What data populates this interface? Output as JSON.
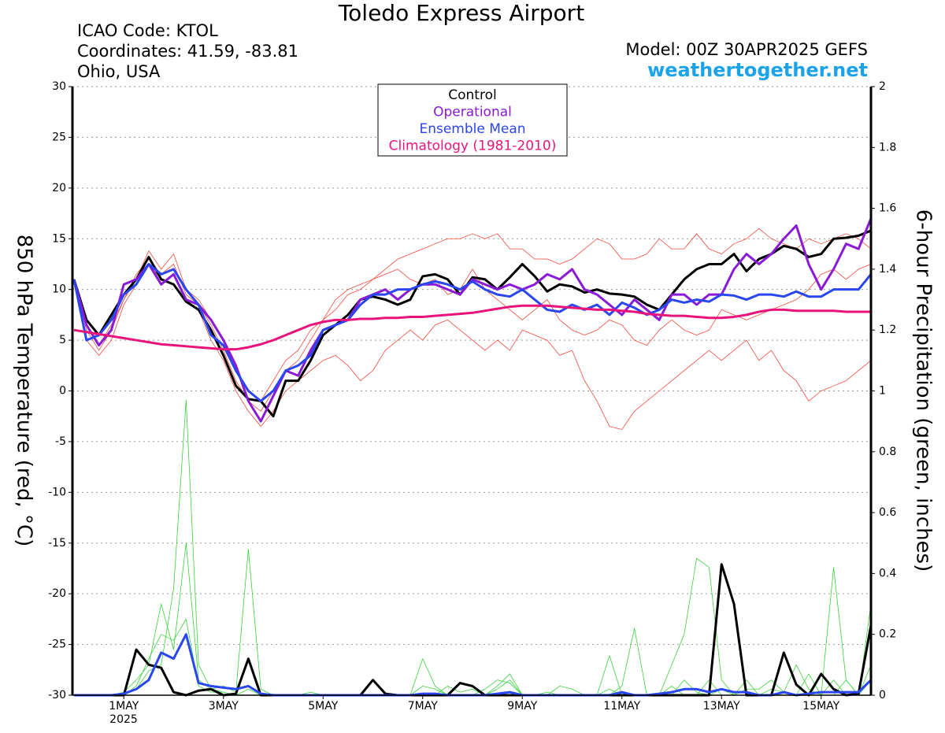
{
  "chart_data": {
    "type": "line",
    "title": "Toledo Express Airport",
    "info": [
      "ICAO Code: KTOL",
      "Coordinates: 41.59, -83.81",
      "Ohio, USA"
    ],
    "model": "Model: 00Z 30APR2025 GEFS",
    "source": "weathertogether.net",
    "ylabel": "850 hPa Temperature (red, °C)",
    "y2label": "6-hour Precipitation (green, inches)",
    "x_sublabel": "2025",
    "categories": [
      null,
      null,
      null,
      null,
      "1MAY",
      null,
      null,
      null,
      null,
      null,
      null,
      null,
      "3MAY",
      null,
      null,
      null,
      null,
      null,
      null,
      null,
      "5MAY",
      null,
      null,
      null,
      null,
      null,
      null,
      null,
      "7MAY",
      null,
      null,
      null,
      null,
      null,
      null,
      null,
      "9MAY",
      null,
      null,
      null,
      null,
      null,
      null,
      null,
      "11MAY",
      null,
      null,
      null,
      null,
      null,
      null,
      null,
      "13MAY",
      null,
      null,
      null,
      null,
      null,
      null,
      null,
      "15MAY",
      null,
      null,
      null,
      null
    ],
    "ylim": [
      -30,
      30
    ],
    "yticks": [
      -30,
      -25,
      -20,
      -15,
      -10,
      -5,
      0,
      5,
      10,
      15,
      20,
      25,
      30
    ],
    "y2lim": [
      0,
      2
    ],
    "y2ticks": [
      0,
      0.2,
      0.4,
      0.6,
      0.8,
      1,
      1.2,
      1.4,
      1.6,
      1.8,
      2
    ],
    "grid": true,
    "series": [
      {
        "color": "#f04a3a",
        "linewidth": 0.8,
        "values": [
          11,
          6,
          4,
          6,
          9,
          11,
          13.8,
          12,
          13.5,
          10,
          9,
          7,
          5,
          2,
          0,
          -1,
          1,
          3,
          4,
          6,
          7,
          8,
          9.5,
          10,
          11,
          12,
          13,
          13.5,
          14,
          14.5,
          15,
          15,
          15.5,
          15,
          15.5,
          14,
          14,
          13,
          13,
          12.5,
          13,
          14,
          15,
          14.5,
          13,
          13,
          13.5,
          15,
          14,
          14,
          15.5,
          14,
          13.5,
          14.5,
          15,
          16,
          15,
          14.5,
          14,
          15,
          14.5,
          15,
          15.5,
          15,
          14
        ]
      },
      {
        "color": "#f04a3a",
        "linewidth": 0.8,
        "values": [
          11,
          5,
          3.5,
          5,
          8.5,
          10.5,
          12.5,
          11,
          10.5,
          9,
          8,
          5,
          3,
          0,
          -2,
          -3.5,
          -2,
          0,
          1,
          2,
          3,
          3.5,
          2.5,
          1,
          2,
          4,
          5,
          6,
          5,
          6.5,
          7,
          6,
          5,
          4,
          5,
          4,
          6,
          5.5,
          5,
          3.5,
          4,
          1,
          -1,
          -3.5,
          -3.8,
          -2,
          -1,
          0,
          1,
          2,
          3,
          4,
          3,
          4,
          5,
          3,
          4,
          2,
          1,
          -1,
          0,
          0.5,
          1,
          2,
          3
        ]
      },
      {
        "color": "#f04a3a",
        "linewidth": 0.8,
        "values": [
          11,
          6.5,
          4.5,
          6.5,
          9,
          11.5,
          13,
          11.5,
          12.5,
          9.5,
          8.5,
          6.5,
          4,
          1,
          -1,
          -2,
          0,
          2,
          3,
          5,
          7,
          9,
          10,
          10.5,
          11,
          11.5,
          12,
          11,
          10.5,
          11,
          9.5,
          10,
          12,
          10,
          9,
          8,
          7,
          8,
          9,
          7,
          6,
          5.5,
          6,
          7,
          6.5,
          5,
          4.5,
          6,
          7,
          6,
          5.5,
          6,
          8,
          7.5,
          7,
          7.5,
          8,
          8.5,
          9,
          10,
          11.5,
          12,
          11,
          12,
          12.5
        ]
      },
      {
        "name": "Control",
        "color": "#000000",
        "linewidth": 3,
        "values": [
          11,
          7,
          5.5,
          7.5,
          9.5,
          11,
          13.2,
          11,
          10.5,
          8.8,
          8,
          6,
          3.5,
          0.5,
          -0.8,
          -1,
          -2.5,
          1,
          1,
          3,
          5.5,
          6.5,
          7.5,
          9,
          9.3,
          9,
          8.5,
          9,
          11.3,
          11.5,
          11,
          9.5,
          11.2,
          11,
          10,
          11.2,
          12.5,
          11.3,
          9.8,
          10.5,
          10.3,
          9.7,
          10,
          9.6,
          9.5,
          9.3,
          8.5,
          8,
          9.5,
          11,
          12,
          12.5,
          12.5,
          13.5,
          11.8,
          13,
          13.5,
          14.3,
          14,
          13.2,
          13.5,
          15,
          15.1,
          15.3,
          15.8
        ]
      },
      {
        "name": "Operational",
        "color": "#8a1ad6",
        "linewidth": 3,
        "values": [
          11,
          6.5,
          4.5,
          6,
          10.5,
          11,
          12.5,
          10.5,
          11.5,
          9,
          8.5,
          7,
          5,
          2.5,
          -1,
          -3,
          -0.5,
          2,
          1.5,
          4,
          6,
          6.5,
          7,
          9,
          9.5,
          10,
          9,
          10,
          10.5,
          10.5,
          10,
          9.5,
          11,
          10.5,
          10,
          10.5,
          10,
          10.5,
          11.5,
          11,
          12,
          10,
          9.5,
          8.5,
          7.5,
          9,
          8,
          7,
          9.5,
          9.5,
          8.5,
          9.5,
          9.5,
          12,
          13.5,
          12.5,
          13.5,
          15,
          16.3,
          12.5,
          10,
          12,
          14.5,
          14,
          17
        ]
      },
      {
        "name": "Ensemble Mean",
        "color": "#2a46f0",
        "linewidth": 3,
        "values": [
          11,
          5,
          5.5,
          7,
          9.5,
          10.5,
          12.5,
          11.5,
          12,
          10,
          8.5,
          5.5,
          4.5,
          2,
          0,
          -1,
          0,
          2,
          2.5,
          3.5,
          6,
          6.5,
          7,
          8.5,
          9.5,
          9.5,
          10,
          10,
          10.5,
          10.8,
          10.5,
          10,
          10.8,
          10,
          9.5,
          9.3,
          10,
          9,
          8,
          7.8,
          8.5,
          8,
          8.5,
          7.5,
          8.7,
          8.2,
          7.5,
          8,
          9,
          8.7,
          9,
          8.8,
          9.5,
          9.4,
          9,
          9.5,
          9.5,
          9.3,
          9.8,
          9.3,
          9.3,
          10,
          10,
          10,
          11.5
        ]
      },
      {
        "name": "Climatology (1981-2010)",
        "color": "#e8147c",
        "linewidth": 3,
        "values": [
          6,
          5.8,
          5.6,
          5.4,
          5.2,
          5,
          4.8,
          4.6,
          4.5,
          4.4,
          4.3,
          4.2,
          4.1,
          4.1,
          4.3,
          4.6,
          5,
          5.5,
          6,
          6.5,
          6.8,
          7,
          7,
          7.1,
          7.1,
          7.2,
          7.2,
          7.3,
          7.3,
          7.4,
          7.5,
          7.6,
          7.7,
          7.9,
          8.1,
          8.3,
          8.4,
          8.4,
          8.4,
          8.3,
          8.2,
          8.1,
          8,
          8,
          7.9,
          7.8,
          7.6,
          7.5,
          7.4,
          7.4,
          7.3,
          7.2,
          7.2,
          7.3,
          7.5,
          7.8,
          8,
          8,
          7.9,
          7.9,
          7.9,
          7.9,
          7.8,
          7.8,
          7.8
        ]
      },
      {
        "axis": "y2",
        "color": "#3ad23a",
        "linewidth": 0.8,
        "values": [
          0,
          0,
          0,
          0,
          0,
          0.02,
          0.08,
          0.1,
          0.35,
          0.97,
          0.1,
          0.02,
          0.01,
          0,
          0,
          0,
          0,
          0,
          0,
          0.01,
          0,
          0,
          0,
          0,
          0,
          0,
          0,
          0,
          0.03,
          0.02,
          0,
          0,
          0,
          0,
          0.02,
          0.05,
          0,
          0,
          0,
          0,
          0,
          0,
          0,
          0.02,
          0,
          0,
          0,
          0,
          0.1,
          0.2,
          0.45,
          0.42,
          0.05,
          0,
          0,
          0,
          0,
          0,
          0,
          0,
          0,
          0.05,
          0,
          0,
          0.1
        ]
      },
      {
        "axis": "y2",
        "color": "#3ad23a",
        "linewidth": 0.8,
        "values": [
          0,
          0,
          0,
          0,
          0.01,
          0.05,
          0.1,
          0.3,
          0.15,
          0.5,
          0.05,
          0.02,
          0.03,
          0.01,
          0.48,
          0.02,
          0,
          0,
          0,
          0,
          0,
          0,
          0,
          0,
          0,
          0,
          0,
          0,
          0.12,
          0.03,
          0,
          0,
          0,
          0.02,
          0.05,
          0.04,
          0,
          0,
          0.01,
          0,
          0,
          0,
          0,
          0.13,
          0,
          0,
          0,
          0,
          0.03,
          0,
          0,
          0.05,
          0,
          0,
          0.02,
          0.02,
          0.05,
          0.01,
          0,
          0.07,
          0,
          0,
          0.05,
          0,
          0.05
        ]
      },
      {
        "axis": "y2",
        "color": "#3ad23a",
        "linewidth": 0.8,
        "values": [
          0,
          0,
          0,
          0,
          0,
          0.03,
          0.12,
          0.2,
          0.18,
          0.25,
          0.03,
          0.01,
          0.01,
          0,
          0.02,
          0,
          0,
          0,
          0,
          0,
          0,
          0,
          0,
          0,
          0,
          0,
          0,
          0,
          0,
          0,
          0.03,
          0.01,
          0.02,
          0,
          0.03,
          0.07,
          0,
          0,
          0,
          0.03,
          0.02,
          0,
          0,
          0,
          0.03,
          0.22,
          0,
          0,
          0,
          0.05,
          0.01,
          0,
          0.02,
          0,
          0.05,
          0,
          0.02,
          0.01,
          0.1,
          0.02,
          0,
          0.42,
          0.05,
          0,
          0.3
        ]
      },
      {
        "axis": "y2",
        "color": "#000000",
        "linewidth": 3,
        "values": [
          0,
          0,
          0,
          0,
          0,
          0.15,
          0.1,
          0.09,
          0.01,
          0,
          0.015,
          0.02,
          0,
          0.005,
          0.12,
          0,
          0,
          0,
          0,
          0,
          0,
          0,
          0,
          0,
          0.05,
          0.005,
          0,
          0,
          0,
          0,
          0,
          0.04,
          0.03,
          0,
          0,
          0,
          0,
          0,
          0,
          0,
          0,
          0,
          0,
          0,
          0,
          0,
          0,
          0,
          0,
          0,
          0,
          0,
          0.43,
          0.3,
          0,
          0,
          0,
          0.14,
          0.035,
          0,
          0.07,
          0.02,
          0,
          0.005,
          0.23
        ]
      },
      {
        "axis": "y2",
        "color": "#2a46f0",
        "linewidth": 3,
        "values": [
          0,
          0,
          0,
          0,
          0.005,
          0.02,
          0.05,
          0.14,
          0.12,
          0.2,
          0.04,
          0.03,
          0.025,
          0.02,
          0.03,
          0.005,
          0,
          0,
          0,
          0,
          0,
          0,
          0,
          0,
          0,
          0,
          0,
          0,
          0.005,
          0.005,
          0,
          0,
          0,
          0,
          0.005,
          0.01,
          0,
          0,
          0,
          0,
          0,
          0,
          0,
          0,
          0.01,
          0,
          0,
          0.005,
          0.01,
          0.02,
          0.02,
          0.01,
          0.02,
          0.01,
          0.01,
          0,
          0,
          0.01,
          0,
          0.005,
          0.01,
          0.01,
          0.01,
          0.01,
          0.05
        ]
      }
    ]
  }
}
